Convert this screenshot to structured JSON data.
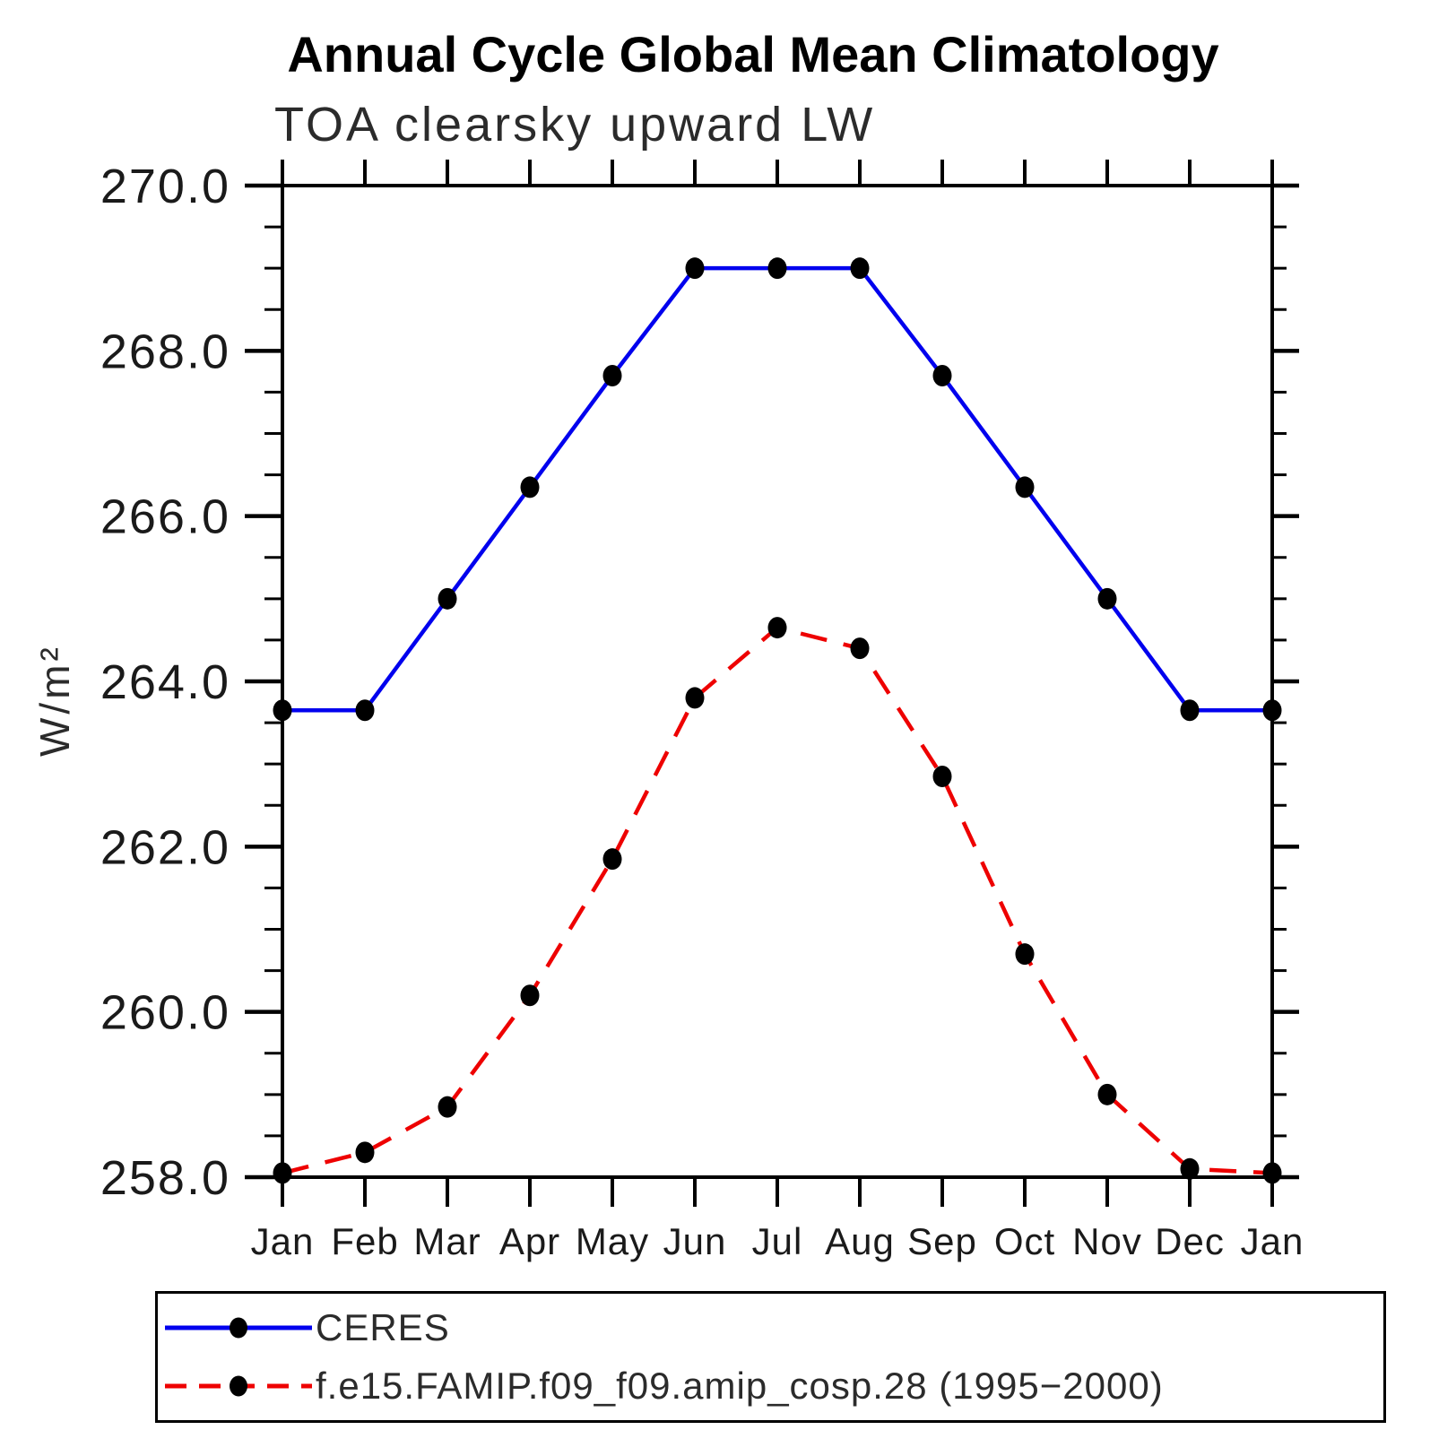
{
  "page": {
    "background_color": "#ffffff"
  },
  "chart_data": {
    "type": "line",
    "title": "Annual Cycle Global Mean Climatology",
    "subtitle": "TOA clearsky upward LW",
    "ylabel": "W/m²",
    "xlabel": "",
    "categories": [
      "Jan",
      "Feb",
      "Mar",
      "Apr",
      "May",
      "Jun",
      "Jul",
      "Aug",
      "Sep",
      "Oct",
      "Nov",
      "Dec",
      "Jan"
    ],
    "ylim": [
      258.0,
      270.0
    ],
    "y_major_step": 2.0,
    "y_minor_step": 0.5,
    "y_tick_labels": [
      "258.0",
      "260.0",
      "262.0",
      "264.0",
      "266.0",
      "268.0",
      "270.0"
    ],
    "grid": false,
    "axis_color": "#000000",
    "marker_color": "#000000",
    "legend_position": "bottom-left-box",
    "series": [
      {
        "name": "CERES",
        "color": "#0000ee",
        "line_style": "solid",
        "marker": "filled-circle",
        "values": [
          263.65,
          263.65,
          265.0,
          266.35,
          267.7,
          269.0,
          269.0,
          269.0,
          267.7,
          266.35,
          265.0,
          263.65,
          263.65
        ]
      },
      {
        "name": "f.e15.FAMIP.f09_f09.amip_cosp.28 (1995−2000)",
        "color": "#ee0000",
        "line_style": "dashed",
        "marker": "filled-circle",
        "values": [
          258.05,
          258.3,
          258.85,
          260.2,
          261.85,
          263.8,
          264.65,
          264.4,
          262.85,
          260.7,
          259.0,
          258.1,
          258.05
        ]
      }
    ]
  }
}
